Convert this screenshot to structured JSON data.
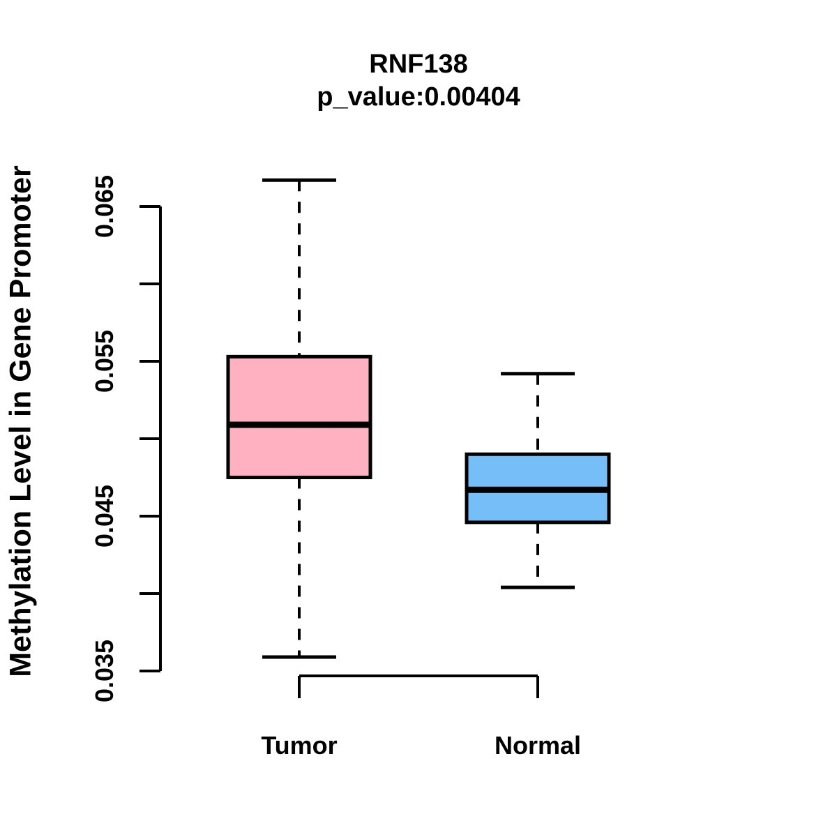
{
  "figure": {
    "title": "RNF138",
    "subtitle": "p_value:0.00404",
    "p_value": "0.00404",
    "gene": "RNF138"
  },
  "chart_data": {
    "type": "boxplot",
    "title": "RNF138",
    "subtitle": "p_value:0.00404",
    "ylabel": "Methylation Level in Gene Promoter",
    "xlabel": "",
    "categories": [
      "Tumor",
      "Normal"
    ],
    "series": [
      {
        "name": "Tumor",
        "min": 0.0359,
        "q1": 0.0475,
        "median": 0.0509,
        "q3": 0.0553,
        "max": 0.0667,
        "fill_color": "#FFB1C1"
      },
      {
        "name": "Normal",
        "min": 0.0404,
        "q1": 0.0446,
        "median": 0.0467,
        "q3": 0.049,
        "max": 0.0542,
        "fill_color": "#76BEF8"
      }
    ],
    "y_axis": {
      "range": [
        0.035,
        0.065
      ],
      "ticks": [
        {
          "value": 0.035,
          "label": "0.035"
        },
        {
          "value": 0.04,
          "label": ""
        },
        {
          "value": 0.045,
          "label": "0.045"
        },
        {
          "value": 0.05,
          "label": ""
        },
        {
          "value": 0.055,
          "label": "0.055"
        },
        {
          "value": 0.06,
          "label": ""
        },
        {
          "value": 0.065,
          "label": "0.065"
        }
      ]
    },
    "grid": false,
    "legend": false,
    "stroke_color": "#000000",
    "background_color": "#FFFFFF"
  }
}
